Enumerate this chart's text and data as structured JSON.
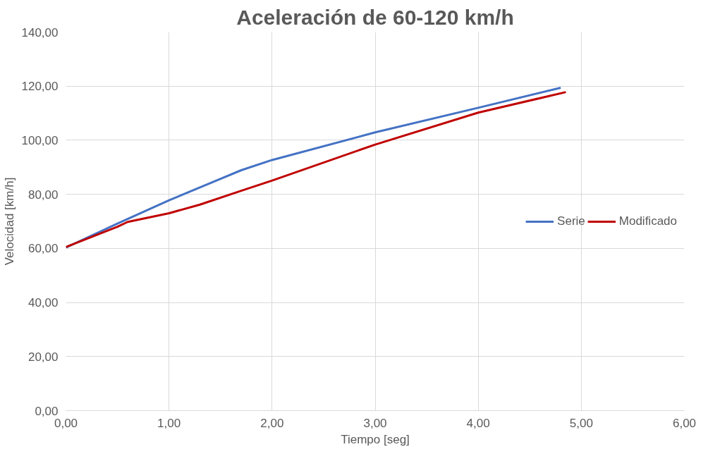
{
  "chart_data": {
    "type": "line",
    "title": "Aceleración de 60-120 km/h",
    "xlabel": "Tiempo [seg]",
    "ylabel": "Velocidad [km/h]",
    "xlim": [
      0,
      6
    ],
    "ylim": [
      0,
      140
    ],
    "xticks": [
      {
        "value": 0,
        "label": "0,00"
      },
      {
        "value": 1,
        "label": "1,00"
      },
      {
        "value": 2,
        "label": "2,00"
      },
      {
        "value": 3,
        "label": "3,00"
      },
      {
        "value": 4,
        "label": "4,00"
      },
      {
        "value": 5,
        "label": "5,00"
      },
      {
        "value": 6,
        "label": "6,00"
      }
    ],
    "yticks": [
      {
        "value": 0,
        "label": "0,00"
      },
      {
        "value": 20,
        "label": "20,00"
      },
      {
        "value": 40,
        "label": "40,00"
      },
      {
        "value": 60,
        "label": "60,00"
      },
      {
        "value": 80,
        "label": "80,00"
      },
      {
        "value": 100,
        "label": "100,00"
      },
      {
        "value": 120,
        "label": "120,00"
      },
      {
        "value": 140,
        "label": "140,00"
      }
    ],
    "grid": true,
    "legend": "right",
    "marker": "none",
    "line_style": "solid",
    "series": [
      {
        "name": "Serie",
        "color": "#4472c4",
        "x": [
          0,
          0.5,
          1.0,
          1.7,
          2.0,
          3.0,
          4.0,
          4.8
        ],
        "values": [
          60.3,
          69.2,
          77.8,
          88.9,
          92.7,
          102.9,
          112.0,
          119.4
        ]
      },
      {
        "name": "Modificado",
        "color": "#c00000",
        "x": [
          0,
          0.5,
          0.6,
          1.0,
          1.3,
          1.7,
          2.0,
          3.0,
          4.0,
          4.85
        ],
        "values": [
          60.5,
          68.0,
          69.8,
          73.0,
          76.2,
          81.3,
          85.1,
          98.4,
          110.2,
          117.8
        ]
      }
    ]
  }
}
